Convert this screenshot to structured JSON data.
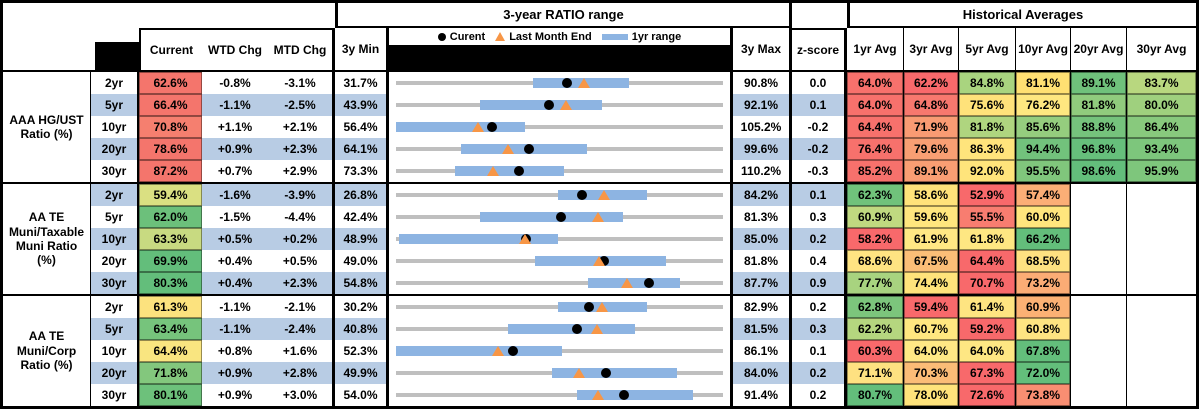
{
  "header": {
    "range_title": "3-year RATIO range",
    "historical_title": "Historical Averages",
    "columns": {
      "current": "Current",
      "wtd": "WTD Chg",
      "mtd": "MTD Chg",
      "min3y": "3y Min",
      "max3y": "3y Max",
      "zscore": "z-score"
    },
    "avg_columns": [
      "1yr Avg",
      "3yr Avg",
      "5yr Avg",
      "10yr Avg",
      "20yr Avg",
      "30yr Avg"
    ],
    "legend": {
      "current": "Curent",
      "last_month": "Last Month End",
      "range_1yr": "1yr range"
    }
  },
  "colors": {
    "stripe_blue": "#B8CCE4",
    "bar_blue": "#8DB4E2",
    "line_gray": "#BFBFBF",
    "triangle_orange": "#F79646",
    "dot_black": "#000000",
    "scale_red": "#F8696B",
    "scale_yellow": "#FFE383",
    "scale_green": "#63BE7B"
  },
  "sections": [
    {
      "label_lines": [
        "AAA HG/UST",
        "Ratio (%)"
      ],
      "rows": [
        {
          "tenor": "2yr",
          "current": "62.6%",
          "current_bg": "#F4756C",
          "wtd": "-0.8%",
          "mtd": "-3.1%",
          "min": "31.7%",
          "max": "90.8%",
          "z": "0.0",
          "bar": [
            0.418,
            0.712
          ],
          "dot": 0.523,
          "tri": 0.575,
          "avgs": [
            {
              "v": "64.0%",
              "bg": "#F7716C"
            },
            {
              "v": "62.2%",
              "bg": "#F8696B"
            },
            {
              "v": "84.8%",
              "bg": "#A9D47F"
            },
            {
              "v": "81.1%",
              "bg": "#FFE072"
            },
            {
              "v": "89.1%",
              "bg": "#6FC17B"
            },
            {
              "v": "83.7%",
              "bg": "#B8D77F"
            }
          ]
        },
        {
          "tenor": "5yr",
          "current": "66.4%",
          "current_bg": "#F4756C",
          "wtd": "-1.1%",
          "mtd": "-2.5%",
          "min": "43.9%",
          "max": "92.1%",
          "z": "0.1",
          "bar": [
            0.258,
            0.63
          ],
          "dot": 0.467,
          "tri": 0.519,
          "avgs": [
            {
              "v": "64.0%",
              "bg": "#F7716C"
            },
            {
              "v": "64.8%",
              "bg": "#F7786E"
            },
            {
              "v": "75.6%",
              "bg": "#FFE27A"
            },
            {
              "v": "76.2%",
              "bg": "#FEE780"
            },
            {
              "v": "81.8%",
              "bg": "#90CB7D"
            },
            {
              "v": "80.0%",
              "bg": "#9FD07E"
            }
          ]
        },
        {
          "tenor": "10yr",
          "current": "70.8%",
          "current_bg": "#F57F6F",
          "wtd": "+1.1%",
          "mtd": "+2.1%",
          "min": "56.4%",
          "max": "105.2%",
          "z": "-0.2",
          "bar": [
            0.0,
            0.394
          ],
          "dot": 0.295,
          "tri": 0.252,
          "avgs": [
            {
              "v": "64.4%",
              "bg": "#F7716C"
            },
            {
              "v": "71.9%",
              "bg": "#F99B73"
            },
            {
              "v": "81.8%",
              "bg": "#AFD57F"
            },
            {
              "v": "85.6%",
              "bg": "#95CD7E"
            },
            {
              "v": "88.8%",
              "bg": "#75C37C"
            },
            {
              "v": "86.4%",
              "bg": "#88C97D"
            }
          ]
        },
        {
          "tenor": "20yr",
          "current": "78.6%",
          "current_bg": "#F4756C",
          "wtd": "+0.9%",
          "mtd": "+2.3%",
          "min": "64.1%",
          "max": "99.6%",
          "z": "-0.2",
          "bar": [
            0.2,
            0.585
          ],
          "dot": 0.408,
          "tri": 0.344,
          "avgs": [
            {
              "v": "76.4%",
              "bg": "#F7716C"
            },
            {
              "v": "79.6%",
              "bg": "#F89F73"
            },
            {
              "v": "86.3%",
              "bg": "#FFE47C"
            },
            {
              "v": "94.4%",
              "bg": "#72C27C"
            },
            {
              "v": "96.8%",
              "bg": "#66BF7B"
            },
            {
              "v": "93.4%",
              "bg": "#7DC67C"
            }
          ]
        },
        {
          "tenor": "30yr",
          "current": "87.2%",
          "current_bg": "#F4756C",
          "wtd": "+0.7%",
          "mtd": "+2.9%",
          "min": "73.3%",
          "max": "110.2%",
          "z": "-0.3",
          "bar": [
            0.179,
            0.515
          ],
          "dot": 0.377,
          "tri": 0.298,
          "avgs": [
            {
              "v": "85.2%",
              "bg": "#F7716C"
            },
            {
              "v": "89.1%",
              "bg": "#F99E73"
            },
            {
              "v": "92.0%",
              "bg": "#FFE47B"
            },
            {
              "v": "95.5%",
              "bg": "#80C67C"
            },
            {
              "v": "98.6%",
              "bg": "#63BE7B"
            },
            {
              "v": "95.9%",
              "bg": "#7EC67C"
            }
          ]
        }
      ]
    },
    {
      "label_lines": [
        "AA TE",
        "Muni/Taxable",
        "Muni Ratio",
        "(%)"
      ],
      "rows": [
        {
          "tenor": "2yr",
          "current": "59.4%",
          "current_bg": "#DAE082",
          "wtd": "-1.6%",
          "mtd": "-3.9%",
          "min": "26.8%",
          "max": "84.2%",
          "z": "0.1",
          "bar": [
            0.494,
            0.767
          ],
          "dot": 0.568,
          "tri": 0.636,
          "avgs": [
            {
              "v": "62.3%",
              "bg": "#70C27B"
            },
            {
              "v": "58.6%",
              "bg": "#FFE37A"
            },
            {
              "v": "52.9%",
              "bg": "#F8696B"
            },
            {
              "v": "57.4%",
              "bg": "#FBAE76"
            },
            null,
            null
          ]
        },
        {
          "tenor": "5yr",
          "current": "62.0%",
          "current_bg": "#6CC07B",
          "wtd": "-1.5%",
          "mtd": "-4.4%",
          "min": "42.4%",
          "max": "81.3%",
          "z": "0.3",
          "bar": [
            0.258,
            0.694
          ],
          "dot": 0.504,
          "tri": 0.617,
          "avgs": [
            {
              "v": "60.9%",
              "bg": "#C0D980"
            },
            {
              "v": "59.6%",
              "bg": "#FFE67E"
            },
            {
              "v": "55.5%",
              "bg": "#F87D70"
            },
            {
              "v": "60.0%",
              "bg": "#FFE67D"
            },
            null,
            null
          ]
        },
        {
          "tenor": "10yr",
          "current": "63.3%",
          "current_bg": "#C8DA81",
          "wtd": "+0.5%",
          "mtd": "+0.2%",
          "min": "48.9%",
          "max": "85.0%",
          "z": "0.2",
          "bar": [
            0.009,
            0.494
          ],
          "dot": 0.399,
          "tri": 0.393,
          "avgs": [
            {
              "v": "58.2%",
              "bg": "#F8696B"
            },
            {
              "v": "61.9%",
              "bg": "#FFE884"
            },
            {
              "v": "61.8%",
              "bg": "#FEE782"
            },
            {
              "v": "66.2%",
              "bg": "#63BE7B"
            },
            null,
            null
          ]
        },
        {
          "tenor": "20yr",
          "current": "69.9%",
          "current_bg": "#63BE7B",
          "wtd": "+0.4%",
          "mtd": "+0.5%",
          "min": "49.0%",
          "max": "81.8%",
          "z": "0.4",
          "bar": [
            0.424,
            0.827
          ],
          "dot": 0.637,
          "tri": 0.622,
          "avgs": [
            {
              "v": "68.6%",
              "bg": "#FFE482"
            },
            {
              "v": "67.5%",
              "bg": "#FBBE77"
            },
            {
              "v": "64.4%",
              "bg": "#F8696B"
            },
            {
              "v": "68.5%",
              "bg": "#FEE181"
            },
            null,
            null
          ]
        },
        {
          "tenor": "30yr",
          "current": "80.3%",
          "current_bg": "#63BE7B",
          "wtd": "+0.4%",
          "mtd": "+2.3%",
          "min": "54.8%",
          "max": "87.7%",
          "z": "0.9",
          "bar": [
            0.588,
            0.87
          ],
          "dot": 0.775,
          "tri": 0.705,
          "avgs": [
            {
              "v": "77.7%",
              "bg": "#A8D37F"
            },
            {
              "v": "74.4%",
              "bg": "#FFE37B"
            },
            {
              "v": "70.7%",
              "bg": "#F8696B"
            },
            {
              "v": "73.2%",
              "bg": "#FBAC75"
            },
            null,
            null
          ]
        }
      ]
    },
    {
      "label_lines": [
        "AA TE",
        "Muni/Corp",
        "Ratio (%)"
      ],
      "rows": [
        {
          "tenor": "2yr",
          "current": "61.3%",
          "current_bg": "#FCE27E",
          "wtd": "-1.1%",
          "mtd": "-2.1%",
          "min": "30.2%",
          "max": "82.9%",
          "z": "0.2",
          "bar": [
            0.494,
            0.767
          ],
          "dot": 0.59,
          "tri": 0.63,
          "avgs": [
            {
              "v": "62.8%",
              "bg": "#7CC57C"
            },
            {
              "v": "59.4%",
              "bg": "#F8696B"
            },
            {
              "v": "61.4%",
              "bg": "#FEE481"
            },
            {
              "v": "60.9%",
              "bg": "#FBB174"
            },
            null,
            null
          ]
        },
        {
          "tenor": "5yr",
          "current": "63.4%",
          "current_bg": "#76C47C",
          "wtd": "-1.1%",
          "mtd": "-2.4%",
          "min": "40.8%",
          "max": "81.5%",
          "z": "0.3",
          "bar": [
            0.342,
            0.73
          ],
          "dot": 0.555,
          "tri": 0.614,
          "avgs": [
            {
              "v": "62.2%",
              "bg": "#B5D67F"
            },
            {
              "v": "60.7%",
              "bg": "#FFE780"
            },
            {
              "v": "59.2%",
              "bg": "#F8696B"
            },
            {
              "v": "60.8%",
              "bg": "#FEE482"
            },
            null,
            null
          ]
        },
        {
          "tenor": "10yr",
          "current": "64.4%",
          "current_bg": "#F9E580",
          "wtd": "+0.8%",
          "mtd": "+1.6%",
          "min": "52.3%",
          "max": "86.1%",
          "z": "0.1",
          "bar": [
            0.0,
            0.509
          ],
          "dot": 0.358,
          "tri": 0.311,
          "avgs": [
            {
              "v": "60.3%",
              "bg": "#F8696B"
            },
            {
              "v": "64.0%",
              "bg": "#FFE885"
            },
            {
              "v": "64.0%",
              "bg": "#FEE783"
            },
            {
              "v": "67.8%",
              "bg": "#63BE7B"
            },
            null,
            null
          ]
        },
        {
          "tenor": "20yr",
          "current": "71.8%",
          "current_bg": "#83C77D",
          "wtd": "+0.9%",
          "mtd": "+2.8%",
          "min": "49.9%",
          "max": "84.0%",
          "z": "0.2",
          "bar": [
            0.476,
            0.858
          ],
          "dot": 0.642,
          "tri": 0.56,
          "avgs": [
            {
              "v": "71.1%",
              "bg": "#FEE181"
            },
            {
              "v": "70.3%",
              "bg": "#FBBC77"
            },
            {
              "v": "67.3%",
              "bg": "#F8696B"
            },
            {
              "v": "72.0%",
              "bg": "#63BE7B"
            },
            null,
            null
          ]
        },
        {
          "tenor": "30yr",
          "current": "80.1%",
          "current_bg": "#6DC17B",
          "wtd": "+0.9%",
          "mtd": "+3.0%",
          "min": "54.0%",
          "max": "91.4%",
          "z": "0.2",
          "bar": [
            0.552,
            0.909
          ],
          "dot": 0.698,
          "tri": 0.617,
          "avgs": [
            {
              "v": "80.7%",
              "bg": "#63BE7B"
            },
            {
              "v": "78.0%",
              "bg": "#FFE37B"
            },
            {
              "v": "72.6%",
              "bg": "#F8696B"
            },
            {
              "v": "73.8%",
              "bg": "#F98E72"
            },
            null,
            null
          ]
        }
      ]
    }
  ],
  "chart_data": {
    "type": "scatter",
    "subtype": "dot-and-range-strip",
    "title": "3-year RATIO range",
    "legend_entries": [
      "Curent",
      "Last Month End",
      "1yr range"
    ],
    "note": "Each row plots Current (black dot), Last Month End (orange triangle) and the 1yr range (blue bar) on a gray line spanning 3y Min to 3y Max",
    "sections": [
      {
        "name": "AAA HG/UST Ratio (%)",
        "tenors": [
          "2yr",
          "5yr",
          "10yr",
          "20yr",
          "30yr"
        ],
        "current": [
          62.6,
          66.4,
          70.8,
          78.6,
          87.2
        ],
        "wtd_chg": [
          -0.8,
          -1.1,
          1.1,
          0.9,
          0.7
        ],
        "mtd_chg": [
          -3.1,
          -2.5,
          2.1,
          2.3,
          2.9
        ],
        "min_3y": [
          31.7,
          43.9,
          56.4,
          64.1,
          73.3
        ],
        "max_3y": [
          90.8,
          92.1,
          105.2,
          99.6,
          110.2
        ],
        "z_score": [
          0.0,
          0.1,
          -0.2,
          -0.2,
          -0.3
        ],
        "last_month_end": [
          65.7,
          68.9,
          68.7,
          76.3,
          84.3
        ],
        "one_yr_range_est": [
          [
            56.4,
            73.8
          ],
          [
            56.3,
            74.3
          ],
          [
            56.4,
            75.6
          ],
          [
            71.2,
            84.9
          ],
          [
            79.9,
            92.3
          ]
        ],
        "avgs": {
          "1yr": [
            64.0,
            64.0,
            64.4,
            76.4,
            85.2
          ],
          "3yr": [
            62.2,
            64.8,
            71.9,
            79.6,
            89.1
          ],
          "5yr": [
            84.8,
            75.6,
            81.8,
            86.3,
            92.0
          ],
          "10yr": [
            81.1,
            76.2,
            85.6,
            94.4,
            95.5
          ],
          "20yr": [
            89.1,
            81.8,
            88.8,
            96.8,
            98.6
          ],
          "30yr": [
            83.7,
            80.0,
            86.4,
            93.4,
            95.9
          ]
        }
      },
      {
        "name": "AA TE Muni/Taxable Muni Ratio (%)",
        "tenors": [
          "2yr",
          "5yr",
          "10yr",
          "20yr",
          "30yr"
        ],
        "current": [
          59.4,
          62.0,
          63.3,
          69.9,
          80.3
        ],
        "wtd_chg": [
          -1.6,
          -1.5,
          0.5,
          0.4,
          0.4
        ],
        "mtd_chg": [
          -3.9,
          -4.4,
          0.2,
          0.5,
          2.3
        ],
        "min_3y": [
          26.8,
          42.4,
          48.9,
          49.0,
          54.8
        ],
        "max_3y": [
          84.2,
          81.3,
          85.0,
          81.8,
          87.7
        ],
        "z_score": [
          0.1,
          0.3,
          0.2,
          0.4,
          0.9
        ],
        "last_month_end": [
          63.3,
          66.4,
          63.1,
          69.4,
          78.0
        ],
        "one_yr_range_est": [
          [
            55.2,
            70.8
          ],
          [
            52.4,
            69.4
          ],
          [
            49.2,
            66.7
          ],
          [
            62.9,
            76.1
          ],
          [
            74.1,
            83.4
          ]
        ],
        "avgs": {
          "1yr": [
            62.3,
            60.9,
            58.2,
            68.6,
            77.7
          ],
          "3yr": [
            58.6,
            59.6,
            61.9,
            67.5,
            74.4
          ],
          "5yr": [
            52.9,
            55.5,
            61.8,
            64.4,
            70.7
          ],
          "10yr": [
            57.4,
            60.0,
            66.2,
            68.5,
            73.2
          ],
          "20yr": [
            null,
            null,
            null,
            null,
            null
          ],
          "30yr": [
            null,
            null,
            null,
            null,
            null
          ]
        }
      },
      {
        "name": "AA TE Muni/Corp Ratio (%)",
        "tenors": [
          "2yr",
          "5yr",
          "10yr",
          "20yr",
          "30yr"
        ],
        "current": [
          61.3,
          63.4,
          64.4,
          71.8,
          80.1
        ],
        "wtd_chg": [
          -1.1,
          -1.1,
          0.8,
          0.9,
          0.9
        ],
        "mtd_chg": [
          -2.1,
          -2.4,
          1.6,
          2.8,
          3.0
        ],
        "min_3y": [
          30.2,
          40.8,
          52.3,
          49.9,
          54.0
        ],
        "max_3y": [
          82.9,
          81.5,
          86.1,
          84.0,
          91.4
        ],
        "z_score": [
          0.2,
          0.3,
          0.1,
          0.2,
          0.2
        ],
        "last_month_end": [
          63.4,
          65.8,
          62.8,
          69.0,
          77.1
        ],
        "one_yr_range_est": [
          [
            56.2,
            70.6
          ],
          [
            54.7,
            70.5
          ],
          [
            52.3,
            69.5
          ],
          [
            66.1,
            79.2
          ],
          [
            74.6,
            88.0
          ]
        ],
        "avgs": {
          "1yr": [
            62.8,
            62.2,
            60.3,
            71.1,
            80.7
          ],
          "3yr": [
            59.4,
            60.7,
            64.0,
            70.3,
            78.0
          ],
          "5yr": [
            61.4,
            59.2,
            64.0,
            67.3,
            72.6
          ],
          "10yr": [
            60.9,
            60.8,
            67.8,
            72.0,
            73.8
          ],
          "20yr": [
            null,
            null,
            null,
            null,
            null
          ],
          "30yr": [
            null,
            null,
            null,
            null,
            null
          ]
        }
      }
    ]
  }
}
